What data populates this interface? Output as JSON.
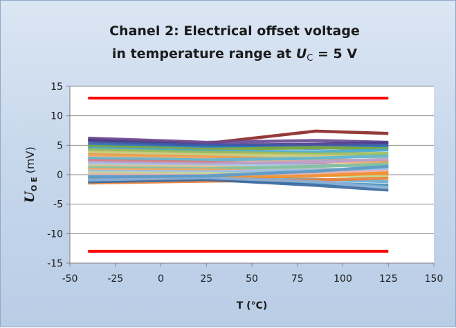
{
  "chart_data": {
    "type": "line",
    "title_line1": "Chanel 2: Electrical offset voltage",
    "title_line2_prefix": "in temperature range at ",
    "title_line2_var": "U",
    "title_line2_sub": "C",
    "title_line2_suffix": " = 5 V",
    "xlabel": "T (°C)",
    "ylabel_var": "U",
    "ylabel_sub": "O E",
    "ylabel_unit": " (mV)",
    "xlim": [
      -50,
      150
    ],
    "ylim": [
      -15,
      15
    ],
    "x_ticks": [
      "-50",
      "-25",
      "0",
      "25",
      "50",
      "75",
      "100",
      "125",
      "150"
    ],
    "y_ticks": [
      "15",
      "10",
      "5",
      "0",
      "-5",
      "-10",
      "-15"
    ],
    "grid": "horizontal",
    "legend": "none",
    "x": [
      -40,
      25,
      85,
      125
    ],
    "limit_lines": {
      "color": "#ff0000",
      "x": [
        -40,
        125
      ],
      "upper": 13,
      "lower": -13
    },
    "series": [
      {
        "color": "#8b2a2a",
        "values": [
          6.0,
          5.3,
          7.4,
          7.0
        ]
      },
      {
        "color": "#6a4a94",
        "values": [
          6.2,
          5.5,
          5.8,
          5.5
        ]
      },
      {
        "color": "#4a3c8c",
        "values": [
          5.8,
          5.0,
          5.2,
          5.4
        ]
      },
      {
        "color": "#3b5ca8",
        "values": [
          5.4,
          5.0,
          4.8,
          5.0
        ]
      },
      {
        "color": "#2e7fb8",
        "values": [
          4.9,
          4.6,
          4.5,
          4.7
        ]
      },
      {
        "color": "#7fa83c",
        "values": [
          4.8,
          4.3,
          4.6,
          4.4
        ]
      },
      {
        "color": "#4aa8c8",
        "values": [
          4.5,
          4.0,
          3.9,
          4.2
        ]
      },
      {
        "color": "#9bbb59",
        "values": [
          4.2,
          3.8,
          3.5,
          3.6
        ]
      },
      {
        "color": "#c8c87a",
        "values": [
          3.8,
          3.4,
          3.2,
          3.0
        ]
      },
      {
        "color": "#e89a4a",
        "values": [
          3.4,
          3.0,
          2.6,
          2.2
        ]
      },
      {
        "color": "#f0b070",
        "values": [
          3.0,
          2.6,
          2.4,
          1.8
        ]
      },
      {
        "color": "#5fb6d4",
        "values": [
          2.8,
          2.5,
          2.8,
          3.2
        ]
      },
      {
        "color": "#d07a7a",
        "values": [
          2.4,
          2.1,
          1.8,
          1.2
        ]
      },
      {
        "color": "#b8a0d0",
        "values": [
          2.1,
          1.8,
          2.2,
          2.6
        ]
      },
      {
        "color": "#a6c8e0",
        "values": [
          1.8,
          1.5,
          1.6,
          1.4
        ]
      },
      {
        "color": "#e0c090",
        "values": [
          1.5,
          1.3,
          1.0,
          0.6
        ]
      },
      {
        "color": "#80c0a0",
        "values": [
          1.2,
          1.0,
          1.4,
          1.8
        ]
      },
      {
        "color": "#f4a460",
        "values": [
          0.9,
          0.8,
          0.4,
          0.0
        ]
      },
      {
        "color": "#9ac0e8",
        "values": [
          0.6,
          0.5,
          0.8,
          0.9
        ]
      },
      {
        "color": "#c0d890",
        "values": [
          0.3,
          0.2,
          0.0,
          -0.4
        ]
      },
      {
        "color": "#e8b0b0",
        "values": [
          0.0,
          -0.1,
          0.3,
          0.6
        ]
      },
      {
        "color": "#6aaed6",
        "values": [
          -0.3,
          -0.4,
          -0.8,
          -1.2
        ]
      },
      {
        "color": "#f28e2b",
        "values": [
          -0.7,
          -0.6,
          -0.2,
          0.3
        ]
      },
      {
        "color": "#4a90b8",
        "values": [
          -1.0,
          -0.9,
          -1.4,
          -1.8
        ]
      },
      {
        "color": "#e8803a",
        "values": [
          -1.4,
          -1.1,
          -0.9,
          -0.6
        ]
      },
      {
        "color": "#3a6aa0",
        "values": [
          -1.2,
          -0.8,
          -1.8,
          -2.6
        ]
      },
      {
        "color": "#8ab0d8",
        "values": [
          -0.9,
          -0.5,
          -1.2,
          -2.2
        ]
      },
      {
        "color": "#5a9ac8",
        "values": [
          -0.4,
          -0.2,
          0.6,
          1.4
        ]
      }
    ]
  }
}
